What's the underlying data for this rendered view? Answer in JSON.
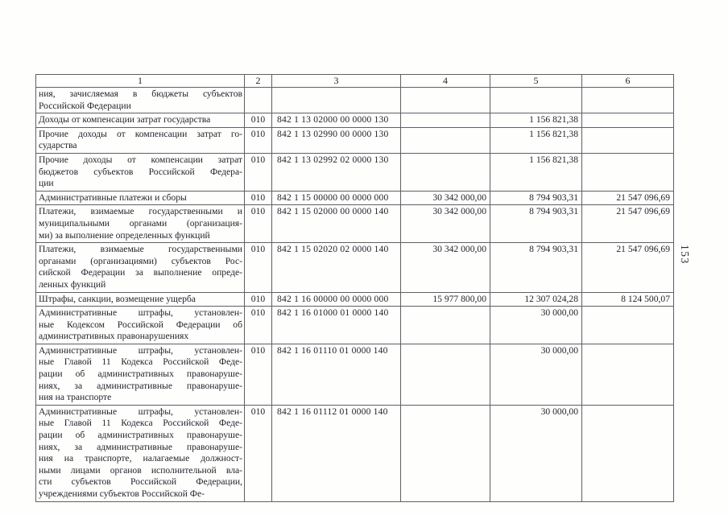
{
  "page": {
    "page_number": "153"
  },
  "colors": {
    "ink": "#23242c",
    "border": "#5f5f66",
    "paper": "#fefefd"
  },
  "table": {
    "headers": [
      "1",
      "2",
      "3",
      "4",
      "5",
      "6"
    ],
    "rows": [
      {
        "c1": [
          "ния, зачисляемая в бюджеты субъектов",
          "Российской Федерации"
        ],
        "c2": "",
        "c3": "",
        "c4": "",
        "c5": "",
        "c6": ""
      },
      {
        "c1": [
          "Доходы от компенсации затрат государства"
        ],
        "c2": "010",
        "c3": "842 1 13 02000 00 0000 130",
        "c4": "",
        "c5": "1 156 821,38",
        "c6": ""
      },
      {
        "c1": [
          "Прочие доходы от компенсации затрат го-",
          "сударства"
        ],
        "c2": "010",
        "c3": "842 1 13 02990 00 0000 130",
        "c4": "",
        "c5": "1 156 821,38",
        "c6": ""
      },
      {
        "c1": [
          "Прочие доходы от компенсации затрат",
          "бюджетов субъектов Российской Федера-",
          "ции"
        ],
        "c2": "010",
        "c3": "842 1 13 02992 02 0000 130",
        "c4": "",
        "c5": "1 156 821,38",
        "c6": ""
      },
      {
        "c1": [
          "Административные платежи и сборы"
        ],
        "c2": "010",
        "c3": "842 1 15 00000 00 0000 000",
        "c4": "30 342 000,00",
        "c5": "8 794 903,31",
        "c6": "21 547 096,69"
      },
      {
        "c1": [
          "Платежи, взимаемые государственными и",
          "муниципальными органами (организация-",
          "ми) за выполнение определенных функций"
        ],
        "c2": "010",
        "c3": "842 1 15 02000 00 0000 140",
        "c4": "30 342 000,00",
        "c5": "8 794 903,31",
        "c6": "21 547 096,69"
      },
      {
        "c1": [
          "Платежи, взимаемые государственными",
          "органами (организациями) субъектов Рос-",
          "сийской Федерации за выполнение опреде-",
          "ленных функций"
        ],
        "c2": "010",
        "c3": "842 1 15 02020 02 0000 140",
        "c4": "30 342 000,00",
        "c5": "8 794 903,31",
        "c6": "21 547 096,69"
      },
      {
        "c1": [
          "Штрафы, санкции, возмещение ущерба"
        ],
        "c2": "010",
        "c3": "842 1 16 00000 00 0000 000",
        "c4": "15 977 800,00",
        "c5": "12 307 024,28",
        "c6": "8 124 500,07"
      },
      {
        "c1": [
          "Административные штрафы, установлен-",
          "ные Кодексом Российской Федерации об",
          "административных правонарушениях"
        ],
        "c2": "010",
        "c3": "842 1 16 01000 01 0000 140",
        "c4": "",
        "c5": "30 000,00",
        "c6": ""
      },
      {
        "c1": [
          "Административные штрафы, установлен-",
          "ные Главой 11 Кодекса Российской Феде-",
          "рации об административных правонаруше-",
          "ниях, за административные правонаруше-",
          "ния на транспорте"
        ],
        "c2": "010",
        "c3": "842 1 16 01110 01 0000 140",
        "c4": "",
        "c5": "30 000,00",
        "c6": ""
      },
      {
        "c1": [
          "Административные штрафы, установлен-",
          "ные Главой 11 Кодекса Российской Феде-",
          "рации об административных правонаруше-",
          "ниях, за административные правонаруше-",
          "ния на транспорте, налагаемые должност-",
          "ными лицами органов исполнительной вла-",
          "сти субъектов Российской Федерации,",
          "учреждениями субъектов Российской Фе-"
        ],
        "c2": "010",
        "c3": "842 1 16 01112 01 0000 140",
        "c4": "",
        "c5": "30 000,00",
        "c6": ""
      }
    ]
  }
}
